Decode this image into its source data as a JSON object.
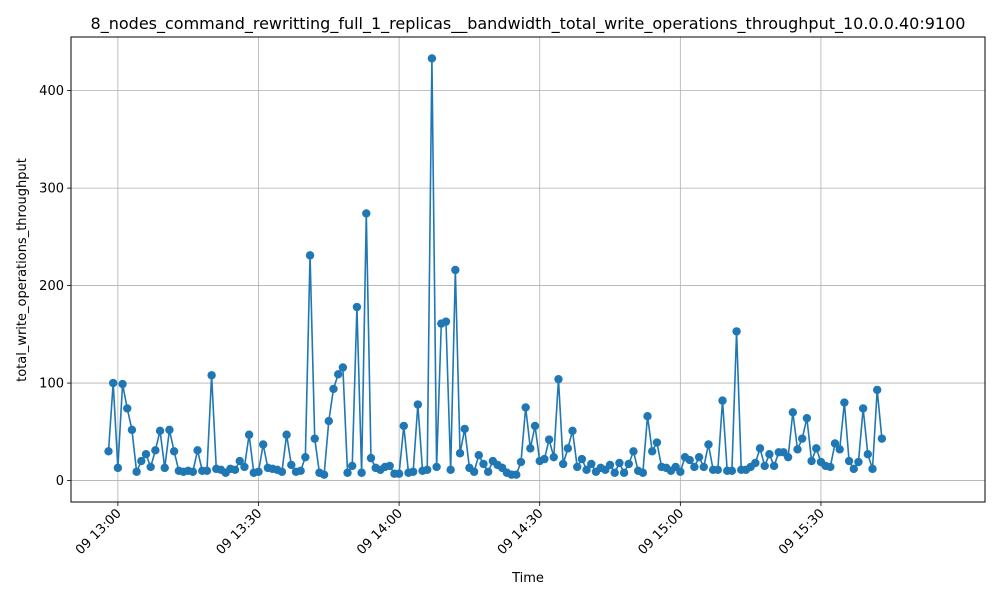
{
  "chart_data": {
    "type": "line",
    "title": "8_nodes_command_rewritting_full_1_replicas__bandwidth_total_write_operations_throughput_10.0.0.40:9100",
    "xlabel": "Time",
    "ylabel": "total_write_operations_throughput",
    "xlim": [
      "12:50",
      "16:05"
    ],
    "ylim": [
      -22,
      455
    ],
    "grid": true,
    "legend": "none",
    "x_ticks": [
      {
        "t": "13:00",
        "label": "09 13:00"
      },
      {
        "t": "13:30",
        "label": "09 13:30"
      },
      {
        "t": "14:00",
        "label": "09 14:00"
      },
      {
        "t": "14:30",
        "label": "09 14:30"
      },
      {
        "t": "15:00",
        "label": "09 15:00"
      },
      {
        "t": "15:30",
        "label": "09 15:30"
      }
    ],
    "y_ticks": [
      0,
      100,
      200,
      300,
      400
    ],
    "colors": {
      "series": "#1f77b4",
      "grid": "#b0b0b0"
    },
    "series": [
      {
        "x": [
          "12:58",
          "12:59",
          "13:00",
          "13:01",
          "13:02",
          "13:03",
          "13:04",
          "13:05",
          "13:06",
          "13:07",
          "13:08",
          "13:09",
          "13:10",
          "13:11",
          "13:12",
          "13:13",
          "13:14",
          "13:15",
          "13:16",
          "13:17",
          "13:18",
          "13:19",
          "13:20",
          "13:21",
          "13:22",
          "13:23",
          "13:24",
          "13:25",
          "13:26",
          "13:27",
          "13:28",
          "13:29",
          "13:30",
          "13:31",
          "13:32",
          "13:33",
          "13:34",
          "13:35",
          "13:36",
          "13:37",
          "13:38",
          "13:39",
          "13:40",
          "13:41",
          "13:42",
          "13:43",
          "13:44",
          "13:45",
          "13:46",
          "13:47",
          "13:48",
          "13:49",
          "13:50",
          "13:51",
          "13:52",
          "13:53",
          "13:54",
          "13:55",
          "13:56",
          "13:57",
          "13:58",
          "13:59",
          "14:00",
          "14:01",
          "14:02",
          "14:03",
          "14:04",
          "14:05",
          "14:06",
          "14:07",
          "14:08",
          "14:09",
          "14:10",
          "14:11",
          "14:12",
          "14:13",
          "14:14",
          "14:15",
          "14:16",
          "14:17",
          "14:18",
          "14:19",
          "14:20",
          "14:21",
          "14:22",
          "14:23",
          "14:24",
          "14:25",
          "14:26",
          "14:27",
          "14:28",
          "14:29",
          "14:30",
          "14:31",
          "14:32",
          "14:33",
          "14:34",
          "14:35",
          "14:36",
          "14:37",
          "14:38",
          "14:39",
          "14:40",
          "14:41",
          "14:42",
          "14:43",
          "14:44",
          "14:45",
          "14:46",
          "14:47",
          "14:48",
          "14:49",
          "14:50",
          "14:51",
          "14:52",
          "14:53",
          "14:54",
          "14:55",
          "14:56",
          "14:57",
          "14:58",
          "14:59",
          "15:00",
          "15:01",
          "15:02",
          "15:03",
          "15:04",
          "15:05",
          "15:06",
          "15:07",
          "15:08",
          "15:09",
          "15:10",
          "15:11",
          "15:12",
          "15:13",
          "15:14",
          "15:15",
          "15:16",
          "15:17",
          "15:18",
          "15:19",
          "15:20",
          "15:21",
          "15:22",
          "15:23",
          "15:24",
          "15:25",
          "15:26",
          "15:27",
          "15:28",
          "15:29",
          "15:30",
          "15:31",
          "15:32",
          "15:33",
          "15:34",
          "15:35",
          "15:36",
          "15:37",
          "15:38",
          "15:39",
          "15:40",
          "15:41",
          "15:42",
          "15:43"
        ],
        "values": [
          30,
          100,
          13,
          99,
          74,
          52,
          9,
          20,
          27,
          14,
          31,
          51,
          13,
          52,
          30,
          10,
          9,
          10,
          9,
          31,
          10,
          10,
          108,
          12,
          11,
          8,
          12,
          11,
          20,
          14,
          47,
          8,
          9,
          37,
          13,
          12,
          11,
          9,
          47,
          16,
          9,
          10,
          24,
          231,
          43,
          8,
          6,
          61,
          94,
          109,
          116,
          8,
          15,
          178,
          8,
          274,
          23,
          13,
          11,
          14,
          15,
          7,
          7,
          56,
          8,
          9,
          78,
          10,
          11,
          433,
          14,
          161,
          163,
          11,
          216,
          28,
          53,
          13,
          9,
          26,
          17,
          9,
          20,
          16,
          13,
          8,
          6,
          6,
          19,
          75,
          33,
          56,
          20,
          22,
          42,
          24,
          104,
          17,
          33,
          51,
          14,
          22,
          11,
          17,
          9,
          13,
          11,
          16,
          8,
          18,
          8,
          17,
          30,
          10,
          8,
          66,
          30,
          39,
          14,
          13,
          10,
          14,
          9,
          24,
          21,
          14,
          24,
          14,
          37,
          11,
          11,
          82,
          10,
          10,
          153,
          11,
          11,
          14,
          18,
          33,
          15,
          27,
          15,
          29,
          29,
          24,
          70,
          32,
          43,
          64,
          20,
          33,
          19,
          15,
          14,
          38,
          32,
          80,
          20,
          12,
          19,
          74,
          27,
          12,
          93,
          43
        ]
      }
    ]
  }
}
